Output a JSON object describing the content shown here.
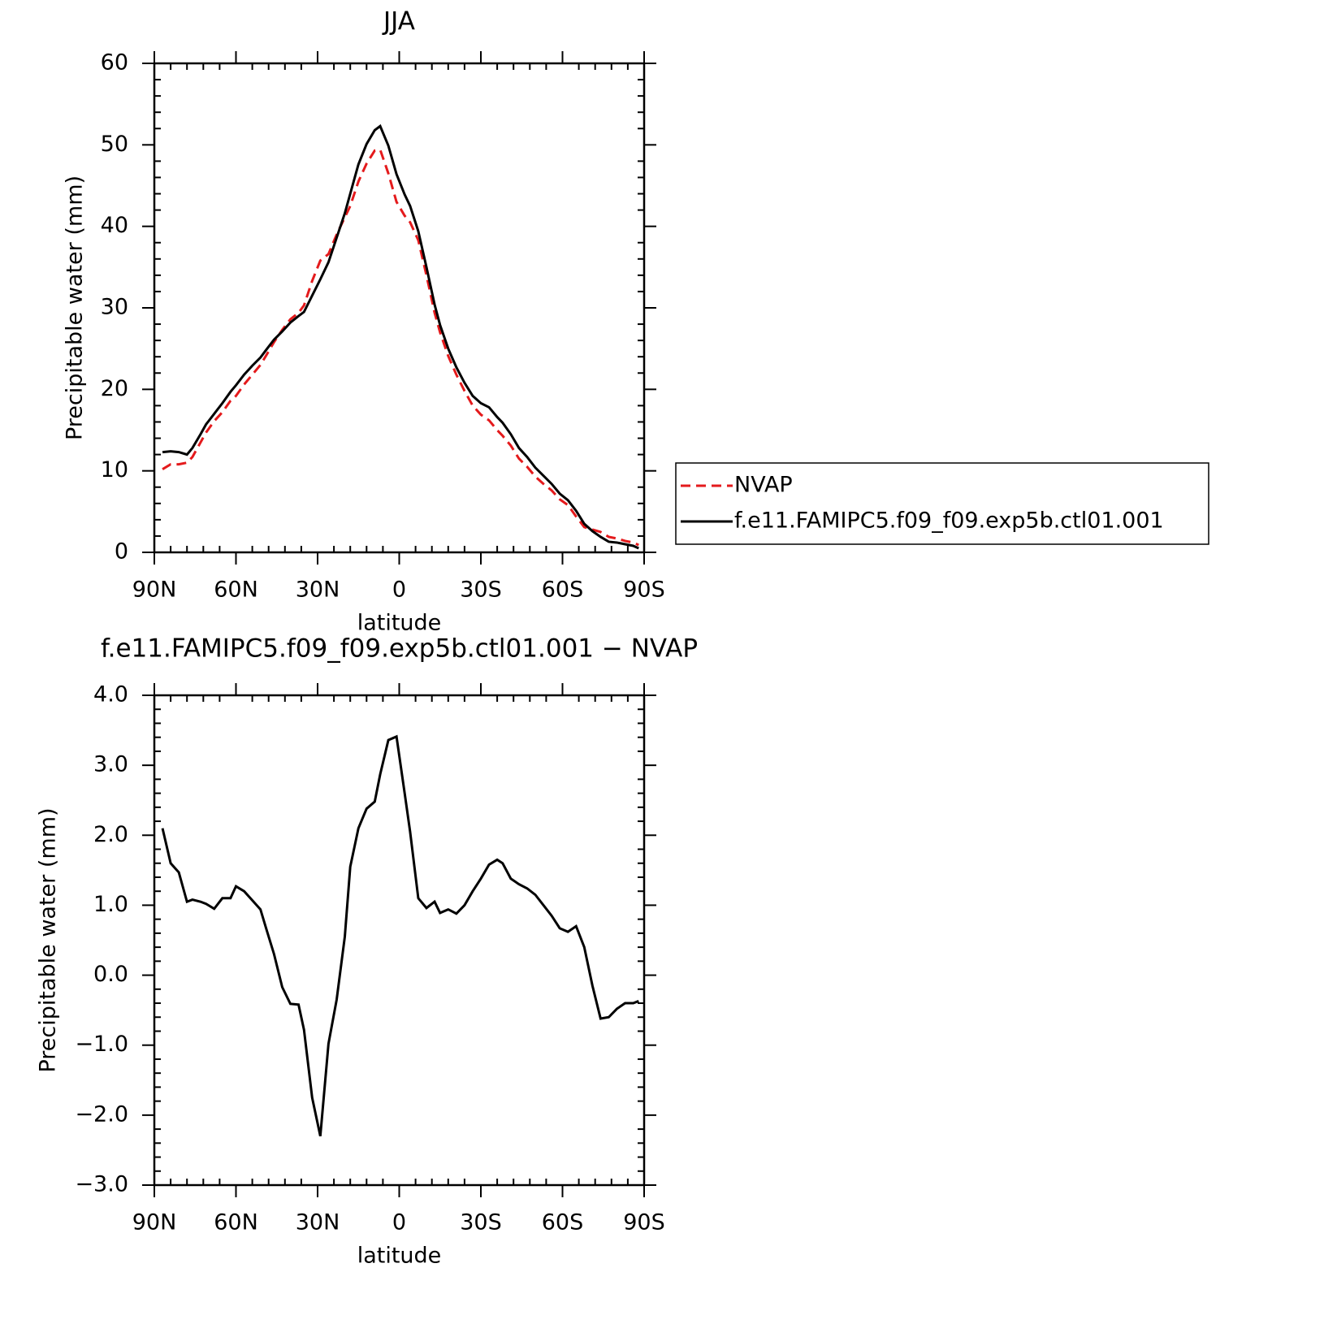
{
  "chart_data": [
    {
      "type": "line",
      "title": "JJA",
      "xlabel": "latitude",
      "ylabel": "Precipitable water (mm)",
      "x": [
        87,
        84,
        81,
        78,
        76,
        73,
        71,
        68,
        65,
        62,
        60,
        57,
        54,
        51,
        49,
        46,
        43,
        40,
        37,
        35,
        32,
        29,
        26,
        23,
        20,
        18,
        15,
        12,
        9,
        7,
        4,
        1,
        -2,
        -4,
        -7,
        -10,
        -13,
        -15,
        -18,
        -21,
        -24,
        -27,
        -30,
        -33,
        -36,
        -38,
        -41,
        -44,
        -47,
        -50,
        -53,
        -56,
        -59,
        -62,
        -65,
        -68,
        -71,
        -74,
        -77,
        -80,
        -83,
        -86,
        -88
      ],
      "series": [
        {
          "name": "NVAP",
          "color": "#e41a1c",
          "linestyle": "dashed",
          "values": [
            10.2,
            10.8,
            10.8,
            11.0,
            11.7,
            13.5,
            14.7,
            16.1,
            17.2,
            18.6,
            19.2,
            20.6,
            21.8,
            23.0,
            24.1,
            25.8,
            27.3,
            28.6,
            29.4,
            30.3,
            33.3,
            35.8,
            36.6,
            39.0,
            41.1,
            42.5,
            45.5,
            47.7,
            49.3,
            49.4,
            46.5,
            43.0,
            41.3,
            40.5,
            38.3,
            34.0,
            29.4,
            27.0,
            24.1,
            21.8,
            19.8,
            18.0,
            16.9,
            16.2,
            15.0,
            14.3,
            13.1,
            11.5,
            10.5,
            9.3,
            8.4,
            7.6,
            6.5,
            5.8,
            4.4,
            3.1,
            2.8,
            2.5,
            1.9,
            1.7,
            1.4,
            1.2,
            0.9
          ]
        },
        {
          "name": "f.e11.FAMIPC5.f09_f09.exp5b.ctl01.001",
          "color": "#000000",
          "linestyle": "solid",
          "values": [
            12.3,
            12.4,
            12.3,
            12.0,
            12.8,
            14.5,
            15.7,
            17.0,
            18.3,
            19.7,
            20.5,
            21.8,
            22.9,
            23.9,
            24.8,
            26.1,
            27.1,
            28.2,
            29.0,
            29.5,
            31.5,
            33.5,
            35.6,
            38.6,
            41.6,
            44.0,
            47.6,
            50.1,
            51.8,
            52.3,
            49.9,
            46.4,
            43.9,
            42.5,
            39.4,
            35.0,
            30.4,
            27.9,
            25.0,
            22.7,
            20.8,
            19.2,
            18.3,
            17.8,
            16.6,
            15.9,
            14.5,
            12.8,
            11.7,
            10.4,
            9.4,
            8.4,
            7.2,
            6.4,
            5.1,
            3.5,
            2.6,
            1.9,
            1.3,
            1.2,
            1.0,
            0.8,
            0.5
          ]
        }
      ],
      "xlim": [
        90,
        -90
      ],
      "xticks": [
        {
          "value": 90,
          "label": "90N"
        },
        {
          "value": 60,
          "label": "60N"
        },
        {
          "value": 30,
          "label": "30N"
        },
        0,
        {
          "value": -30,
          "label": "30S"
        },
        {
          "value": -60,
          "label": "60S"
        },
        {
          "value": -90,
          "label": "90S"
        }
      ],
      "ylim": [
        0,
        60
      ],
      "yticks": [
        0,
        10,
        20,
        30,
        40,
        50,
        60
      ],
      "legend": "right"
    },
    {
      "type": "line",
      "title": "f.e11.FAMIPC5.f09_f09.exp5b.ctl01.001 − NVAP",
      "xlabel": "latitude",
      "ylabel": "Precipitable water (mm)",
      "x": [
        87,
        84,
        81,
        78,
        76,
        73,
        71,
        68,
        65,
        62,
        60,
        57,
        54,
        51,
        49,
        46,
        43,
        40,
        37,
        35,
        32,
        29,
        26,
        23,
        20,
        18,
        15,
        12,
        9,
        7,
        4,
        1,
        -2,
        -4,
        -7,
        -10,
        -13,
        -15,
        -18,
        -21,
        -24,
        -27,
        -30,
        -33,
        -36,
        -38,
        -41,
        -44,
        -47,
        -50,
        -53,
        -56,
        -59,
        -62,
        -65,
        -68,
        -71,
        -74,
        -77,
        -80,
        -83,
        -86,
        -88
      ],
      "series": [
        {
          "color": "#000000",
          "linestyle": "solid",
          "values": [
            2.1,
            1.6,
            1.47,
            1.05,
            1.08,
            1.05,
            1.02,
            0.95,
            1.1,
            1.1,
            1.27,
            1.2,
            1.07,
            0.94,
            0.68,
            0.3,
            -0.17,
            -0.41,
            -0.42,
            -0.78,
            -1.75,
            -2.3,
            -0.98,
            -0.35,
            0.55,
            1.55,
            2.1,
            2.38,
            2.48,
            2.87,
            3.36,
            3.41,
            2.6,
            2.05,
            1.1,
            0.96,
            1.05,
            0.89,
            0.94,
            0.88,
            1.0,
            1.2,
            1.38,
            1.58,
            1.65,
            1.6,
            1.38,
            1.3,
            1.24,
            1.15,
            1.0,
            0.85,
            0.67,
            0.62,
            0.7,
            0.4,
            -0.15,
            -0.62,
            -0.6,
            -0.48,
            -0.4,
            -0.4,
            -0.37
          ]
        }
      ],
      "xlim": [
        90,
        -90
      ],
      "xticks": [
        {
          "value": 90,
          "label": "90N"
        },
        {
          "value": 60,
          "label": "60N"
        },
        {
          "value": 30,
          "label": "30N"
        },
        0,
        {
          "value": -30,
          "label": "30S"
        },
        {
          "value": -60,
          "label": "60S"
        },
        {
          "value": -90,
          "label": "90S"
        }
      ],
      "ylim": [
        -3,
        4
      ],
      "yticks": [
        {
          "value": -3,
          "label": "−3.0"
        },
        {
          "value": -2,
          "label": "−2.0"
        },
        {
          "value": -1,
          "label": "−1.0"
        },
        {
          "value": 0,
          "label": "0.0"
        },
        {
          "value": 1,
          "label": "1.0"
        },
        {
          "value": 2,
          "label": "2.0"
        },
        {
          "value": 3,
          "label": "3.0"
        },
        {
          "value": 4,
          "label": "4.0"
        }
      ]
    }
  ]
}
